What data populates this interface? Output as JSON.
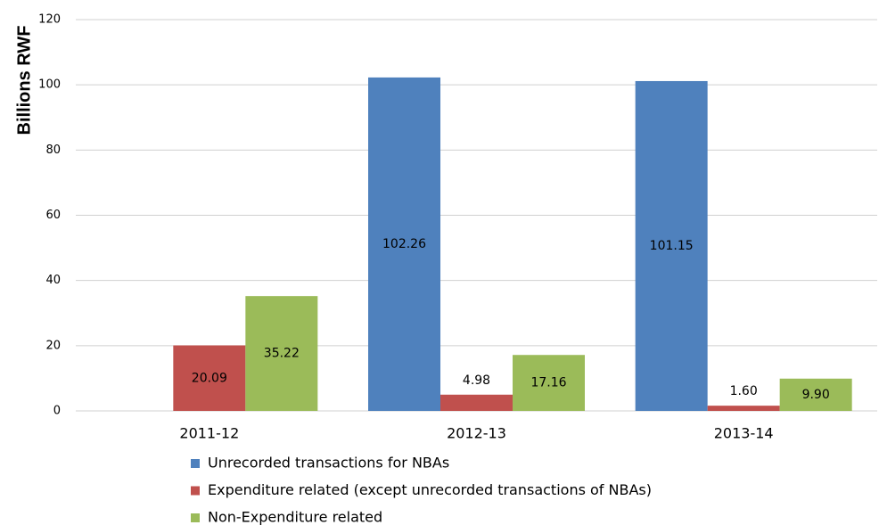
{
  "chart_data": {
    "type": "bar",
    "ylabel": "Billions RWF",
    "categories": [
      "2011-12",
      "2012-13",
      "2013-14"
    ],
    "series": [
      {
        "name": "Unrecorded transactions for NBAs",
        "color": "#4f81bd",
        "values": [
          null,
          102.26,
          101.15
        ],
        "value_labels": [
          null,
          "102.26",
          "101.15"
        ]
      },
      {
        "name": "Expenditure related (except unrecorded transactions of NBAs)",
        "color": "#c0504d",
        "values": [
          20.09,
          4.98,
          1.6
        ],
        "value_labels": [
          "20.09",
          "4.98",
          "1.60"
        ]
      },
      {
        "name": "Non-Expenditure related",
        "color": "#9bbb59",
        "values": [
          35.22,
          17.16,
          9.9
        ],
        "value_labels": [
          "35.22",
          "17.16",
          "9.90"
        ]
      }
    ],
    "ylim": [
      0,
      120
    ],
    "yticks": [
      0,
      20,
      40,
      60,
      80,
      100,
      120
    ],
    "grid": true,
    "legend": "bottom"
  }
}
